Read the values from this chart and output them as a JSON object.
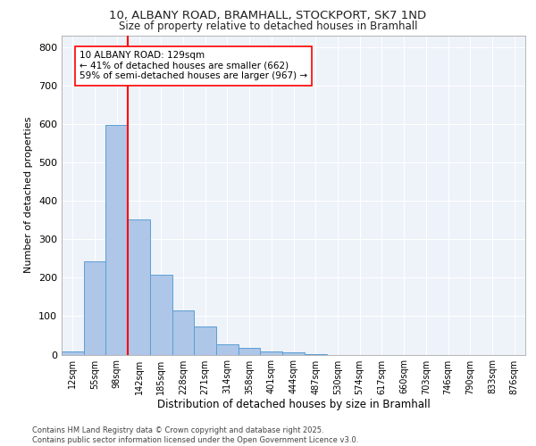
{
  "title_line1": "10, ALBANY ROAD, BRAMHALL, STOCKPORT, SK7 1ND",
  "title_line2": "Size of property relative to detached houses in Bramhall",
  "xlabel": "Distribution of detached houses by size in Bramhall",
  "ylabel": "Number of detached properties",
  "categories": [
    "12sqm",
    "55sqm",
    "98sqm",
    "142sqm",
    "185sqm",
    "228sqm",
    "271sqm",
    "314sqm",
    "358sqm",
    "401sqm",
    "444sqm",
    "487sqm",
    "530sqm",
    "574sqm",
    "617sqm",
    "660sqm",
    "703sqm",
    "746sqm",
    "790sqm",
    "833sqm",
    "876sqm"
  ],
  "values": [
    8,
    242,
    598,
    352,
    207,
    116,
    72,
    27,
    18,
    8,
    5,
    1,
    0,
    0,
    0,
    0,
    0,
    0,
    0,
    0,
    0
  ],
  "bar_color": "#aec6e8",
  "bar_edge_color": "#5a9fd4",
  "red_line_index": 3,
  "annotation_title": "10 ALBANY ROAD: 129sqm",
  "annotation_line1": "← 41% of detached houses are smaller (662)",
  "annotation_line2": "59% of semi-detached houses are larger (967) →",
  "ylim": [
    0,
    830
  ],
  "yticks": [
    0,
    100,
    200,
    300,
    400,
    500,
    600,
    700,
    800
  ],
  "footer_line1": "Contains HM Land Registry data © Crown copyright and database right 2025.",
  "footer_line2": "Contains public sector information licensed under the Open Government Licence v3.0.",
  "bg_color": "#eef2f9",
  "grid_color": "#ffffff"
}
